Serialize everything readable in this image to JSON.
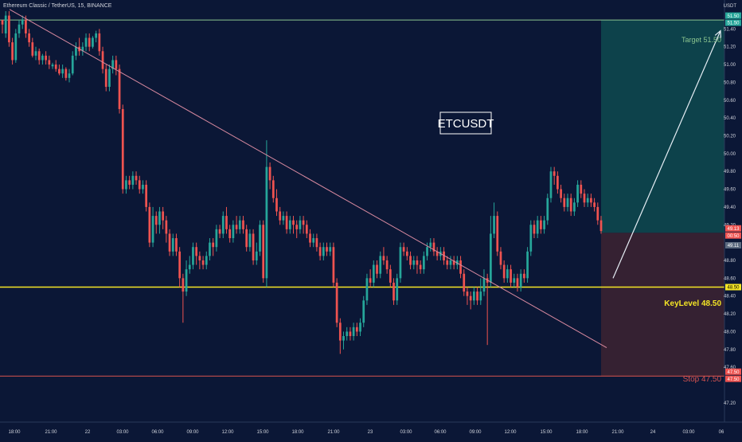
{
  "header": {
    "symbol_line": "Ethereum Classic / TetherUS, 15, BINANCE",
    "currency": "USDT"
  },
  "colors": {
    "background": "#0b1736",
    "up": "#26a69a",
    "down": "#ef5350",
    "target_zone": "#0e4a4f",
    "stop_zone": "#3a2232",
    "key_level": "#f5e625",
    "target_line": "#8bc48f",
    "stop_line": "#d9534f",
    "trendline": "#d98aa0",
    "arrow": "#e6eef5",
    "text": "#d1d4dc"
  },
  "chart_data": {
    "type": "candlestick",
    "title": "ETCUSDT",
    "timeframe": "15",
    "exchange": "BINANCE",
    "y_axis": {
      "min": 47.2,
      "max": 51.5,
      "ticks": [
        "51.40",
        "51.20",
        "51.00",
        "50.80",
        "50.60",
        "50.40",
        "50.20",
        "50.00",
        "49.80",
        "49.60",
        "49.40",
        "49.20",
        "48.80",
        "48.60",
        "48.40",
        "48.20",
        "48.00",
        "47.80",
        "47.60",
        "47.20"
      ]
    },
    "x_axis": {
      "ticks": [
        "18:00",
        "21:00",
        "22",
        "03:00",
        "06:00",
        "09:00",
        "12:00",
        "15:00",
        "18:00",
        "21:00",
        "23",
        "03:00",
        "06:00",
        "09:00",
        "12:00",
        "15:00",
        "18:00",
        "21:00",
        "24",
        "03:00",
        "06"
      ]
    },
    "price_badges": [
      {
        "label": "51.50",
        "value": 51.55,
        "color": "#26a69a"
      },
      {
        "label": "51.50",
        "value": 51.47,
        "color": "#26a69a"
      },
      {
        "label": "49.13",
        "value": 49.16,
        "color": "#ef5350"
      },
      {
        "label": "00:50",
        "value": 49.08,
        "color": "#ef5350"
      },
      {
        "label": "49.11",
        "value": 48.97,
        "color": "#5d6b80"
      },
      {
        "label": "48.50",
        "value": 48.5,
        "color": "#f5e625"
      },
      {
        "label": "47.50",
        "value": 47.55,
        "color": "#ef5350"
      },
      {
        "label": "47.50",
        "value": 47.47,
        "color": "#ef5350"
      }
    ],
    "levels": [
      {
        "name": "target",
        "value": 51.5,
        "label": "Target 51.50"
      },
      {
        "name": "key",
        "value": 48.5,
        "label": "KeyLevel 48.50"
      },
      {
        "name": "stop",
        "value": 47.5,
        "label": "Stop 47.50"
      },
      {
        "name": "entry",
        "value": 49.11
      }
    ],
    "trendline": {
      "from": {
        "time": "17:00",
        "price": 51.6
      },
      "to": {
        "time": "19:45",
        "price": 47.8
      }
    },
    "projection_arrow": {
      "from": {
        "time": "20:00",
        "price": 48.6
      },
      "to": {
        "time": "06:00",
        "price": 51.4
      }
    },
    "candles_ohlc": [
      [
        51.5,
        51.45,
        51.5,
        51.35
      ],
      [
        51.35,
        51.55,
        51.6,
        51.3
      ],
      [
        51.55,
        51.25,
        51.6,
        51.2
      ],
      [
        51.25,
        51.05,
        51.3,
        51
      ],
      [
        51.05,
        51.35,
        51.4,
        51.02
      ],
      [
        51.35,
        51.45,
        51.5,
        51.3
      ],
      [
        51.45,
        51.5,
        51.55,
        51.4
      ],
      [
        51.5,
        51.35,
        51.55,
        51.3
      ],
      [
        51.35,
        51.25,
        51.4,
        51.2
      ],
      [
        51.25,
        51.1,
        51.3,
        51.08
      ],
      [
        51.1,
        51.15,
        51.2,
        51.05
      ],
      [
        51.15,
        51.05,
        51.18,
        51
      ],
      [
        51.05,
        51.1,
        51.12,
        51
      ],
      [
        51.1,
        51.05,
        51.15,
        51
      ],
      [
        51.05,
        51,
        51.1,
        50.95
      ],
      [
        50.98,
        51,
        51.02,
        50.95
      ],
      [
        51,
        50.95,
        51.05,
        50.92
      ],
      [
        50.95,
        50.9,
        51,
        50.88
      ],
      [
        50.9,
        50.95,
        51,
        50.85
      ],
      [
        50.95,
        50.85,
        50.97,
        50.82
      ],
      [
        50.85,
        50.9,
        50.95,
        50.8
      ],
      [
        50.9,
        51.1,
        51.15,
        50.88
      ],
      [
        51.1,
        51.2,
        51.25,
        51.05
      ],
      [
        51.2,
        51.15,
        51.3,
        51.1
      ],
      [
        51.15,
        51.2,
        51.25,
        51.1
      ],
      [
        51.2,
        51.3,
        51.35,
        51.15
      ],
      [
        51.3,
        51.2,
        51.35,
        51.15
      ],
      [
        51.2,
        51.3,
        51.32,
        51.18
      ],
      [
        51.3,
        51.35,
        51.38,
        51.25
      ],
      [
        51.35,
        51.15,
        51.4,
        51.1
      ],
      [
        51.15,
        50.95,
        51.2,
        50.9
      ],
      [
        50.95,
        50.75,
        51,
        50.7
      ],
      [
        50.75,
        50.95,
        51,
        50.7
      ],
      [
        50.95,
        51.05,
        51.1,
        50.9
      ],
      [
        51.05,
        50.95,
        51.1,
        50.88
      ],
      [
        50.95,
        50.5,
        51,
        50.45
      ],
      [
        50.5,
        49.6,
        50.55,
        49.55
      ],
      [
        49.6,
        49.7,
        49.75,
        49.55
      ],
      [
        49.7,
        49.65,
        49.75,
        49.6
      ],
      [
        49.65,
        49.75,
        49.8,
        49.6
      ],
      [
        49.75,
        49.7,
        49.8,
        49.65
      ],
      [
        49.7,
        49.6,
        49.75,
        49.55
      ],
      [
        49.6,
        49.65,
        49.7,
        49.55
      ],
      [
        49.65,
        49.4,
        49.7,
        49.35
      ],
      [
        49.4,
        49,
        49.45,
        48.95
      ],
      [
        49,
        49.3,
        49.4,
        48.95
      ],
      [
        49.3,
        49.2,
        49.35,
        49.1
      ],
      [
        49.2,
        49.35,
        49.4,
        49.1
      ],
      [
        49.35,
        49.25,
        49.4,
        49.15
      ],
      [
        49.25,
        49.1,
        49.3,
        49
      ],
      [
        49.1,
        48.9,
        49.15,
        48.85
      ],
      [
        48.9,
        49.05,
        49.1,
        48.85
      ],
      [
        49.05,
        48.9,
        49.1,
        48.85
      ],
      [
        48.9,
        48.6,
        48.95,
        48.5
      ],
      [
        48.6,
        48.45,
        48.65,
        48.1
      ],
      [
        48.45,
        48.7,
        48.8,
        48.4
      ],
      [
        48.7,
        48.75,
        48.85,
        48.65
      ],
      [
        48.75,
        48.95,
        49,
        48.7
      ],
      [
        48.95,
        48.85,
        49,
        48.75
      ],
      [
        48.85,
        48.8,
        48.9,
        48.7
      ],
      [
        48.8,
        48.75,
        48.85,
        48.7
      ],
      [
        48.75,
        48.85,
        48.9,
        48.7
      ],
      [
        48.85,
        49,
        49.05,
        48.8
      ],
      [
        49,
        48.95,
        49.05,
        48.85
      ],
      [
        48.95,
        49.15,
        49.2,
        48.9
      ],
      [
        49.15,
        49.1,
        49.2,
        49.05
      ],
      [
        49.1,
        49.3,
        49.35,
        49.05
      ],
      [
        49.3,
        49.15,
        49.4,
        49.1
      ],
      [
        49.15,
        49.05,
        49.2,
        49
      ],
      [
        49.05,
        49.2,
        49.25,
        49
      ],
      [
        49.2,
        49.15,
        49.3,
        49.1
      ],
      [
        49.15,
        49.25,
        49.3,
        49.1
      ],
      [
        49.25,
        49.15,
        49.3,
        49.1
      ],
      [
        49.15,
        48.95,
        49.2,
        48.9
      ],
      [
        48.95,
        49.1,
        49.15,
        48.9
      ],
      [
        49.1,
        48.8,
        49.15,
        48.75
      ],
      [
        48.8,
        48.9,
        49,
        48.75
      ],
      [
        48.9,
        49.2,
        49.25,
        48.85
      ],
      [
        49.2,
        48.6,
        49.25,
        48.55
      ],
      [
        48.6,
        49.85,
        50.15,
        48.5
      ],
      [
        49.85,
        49.7,
        49.9,
        49.6
      ],
      [
        49.7,
        49.5,
        49.75,
        49.45
      ],
      [
        49.5,
        49.35,
        49.6,
        49.3
      ],
      [
        49.35,
        49.25,
        49.4,
        49.2
      ],
      [
        49.25,
        49.3,
        49.35,
        49.2
      ],
      [
        49.3,
        49.15,
        49.35,
        49.1
      ],
      [
        49.15,
        49.25,
        49.3,
        49.1
      ],
      [
        49.25,
        49.2,
        49.3,
        49.1
      ],
      [
        49.2,
        49.15,
        49.25,
        49.05
      ],
      [
        49.15,
        49.25,
        49.3,
        49.1
      ],
      [
        49.25,
        49.2,
        49.3,
        49.1
      ],
      [
        49.2,
        49.1,
        49.25,
        49.05
      ],
      [
        49.1,
        49,
        49.15,
        48.95
      ],
      [
        49,
        49.05,
        49.1,
        48.95
      ],
      [
        49.05,
        48.95,
        49.1,
        48.9
      ],
      [
        48.95,
        48.85,
        49,
        48.8
      ],
      [
        48.85,
        48.95,
        49,
        48.8
      ],
      [
        48.95,
        48.9,
        49,
        48.85
      ],
      [
        48.9,
        48.95,
        49,
        48.85
      ],
      [
        48.95,
        48.55,
        49,
        48.5
      ],
      [
        48.55,
        48.1,
        48.6,
        48.05
      ],
      [
        48.1,
        47.9,
        48.15,
        47.75
      ],
      [
        47.9,
        47.95,
        48,
        47.8
      ],
      [
        47.95,
        48,
        48.05,
        47.9
      ],
      [
        48,
        47.95,
        48.05,
        47.9
      ],
      [
        47.95,
        48.05,
        48.1,
        47.9
      ],
      [
        48.05,
        48,
        48.1,
        47.95
      ],
      [
        48,
        48.1,
        48.15,
        47.95
      ],
      [
        48.1,
        48.35,
        48.4,
        48.05
      ],
      [
        48.35,
        48.6,
        48.65,
        48.3
      ],
      [
        48.6,
        48.55,
        48.7,
        48.5
      ],
      [
        48.55,
        48.75,
        48.8,
        48.5
      ],
      [
        48.75,
        48.65,
        48.8,
        48.6
      ],
      [
        48.65,
        48.85,
        48.9,
        48.6
      ],
      [
        48.85,
        48.8,
        48.95,
        48.75
      ],
      [
        48.8,
        48.7,
        48.85,
        48.65
      ],
      [
        48.7,
        48.55,
        48.75,
        48.5
      ],
      [
        48.55,
        48.35,
        48.6,
        48.3
      ],
      [
        48.35,
        48.6,
        48.65,
        48.3
      ],
      [
        48.6,
        48.95,
        49,
        48.55
      ],
      [
        48.95,
        48.9,
        49,
        48.85
      ],
      [
        48.9,
        48.85,
        48.95,
        48.8
      ],
      [
        48.85,
        48.75,
        48.9,
        48.7
      ],
      [
        48.75,
        48.8,
        48.85,
        48.7
      ],
      [
        48.8,
        48.75,
        48.85,
        48.65
      ],
      [
        48.75,
        48.7,
        48.8,
        48.65
      ],
      [
        48.7,
        48.85,
        48.9,
        48.65
      ],
      [
        48.85,
        48.95,
        49,
        48.8
      ],
      [
        48.95,
        49,
        49.05,
        48.9
      ],
      [
        49,
        48.9,
        49.05,
        48.85
      ],
      [
        48.9,
        48.85,
        48.95,
        48.8
      ],
      [
        48.85,
        48.9,
        48.95,
        48.8
      ],
      [
        48.9,
        48.8,
        48.95,
        48.75
      ],
      [
        48.8,
        48.75,
        48.85,
        48.7
      ],
      [
        48.75,
        48.8,
        48.85,
        48.7
      ],
      [
        48.8,
        48.75,
        48.85,
        48.7
      ],
      [
        48.75,
        48.8,
        48.85,
        48.7
      ],
      [
        48.8,
        48.65,
        48.85,
        48.6
      ],
      [
        48.65,
        48.45,
        48.7,
        48.4
      ],
      [
        48.45,
        48.4,
        48.5,
        48.3
      ],
      [
        48.4,
        48.35,
        48.45,
        48.25
      ],
      [
        48.35,
        48.45,
        48.5,
        48.3
      ],
      [
        48.45,
        48.35,
        48.5,
        48.3
      ],
      [
        48.35,
        48.45,
        48.6,
        48.3
      ],
      [
        48.45,
        48.6,
        48.7,
        48.4
      ],
      [
        48.6,
        48.55,
        48.65,
        47.85
      ],
      [
        48.55,
        49.1,
        49.3,
        48.5
      ],
      [
        49.1,
        49.3,
        49.45,
        49.05
      ],
      [
        49.3,
        48.9,
        49.35,
        48.85
      ],
      [
        48.9,
        48.75,
        48.95,
        48.7
      ],
      [
        48.75,
        48.6,
        48.8,
        48.55
      ],
      [
        48.6,
        48.7,
        48.75,
        48.55
      ],
      [
        48.7,
        48.55,
        48.75,
        48.5
      ],
      [
        48.55,
        48.6,
        48.65,
        48.5
      ],
      [
        48.6,
        48.5,
        48.65,
        48.45
      ],
      [
        48.5,
        48.65,
        48.7,
        48.45
      ],
      [
        48.65,
        48.6,
        48.7,
        48.55
      ],
      [
        48.6,
        48.9,
        48.95,
        48.55
      ],
      [
        48.9,
        49.2,
        49.25,
        48.85
      ],
      [
        49.2,
        49.1,
        49.25,
        49.05
      ],
      [
        49.1,
        49.25,
        49.3,
        49.05
      ],
      [
        49.25,
        49.15,
        49.3,
        49.1
      ],
      [
        49.15,
        49.25,
        49.3,
        49.1
      ],
      [
        49.25,
        49.5,
        49.55,
        49.2
      ],
      [
        49.5,
        49.8,
        49.85,
        49.45
      ],
      [
        49.8,
        49.75,
        49.85,
        49.65
      ],
      [
        49.75,
        49.6,
        49.8,
        49.55
      ],
      [
        49.6,
        49.5,
        49.65,
        49.45
      ],
      [
        49.5,
        49.4,
        49.55,
        49.35
      ],
      [
        49.4,
        49.5,
        49.55,
        49.35
      ],
      [
        49.5,
        49.35,
        49.55,
        49.3
      ],
      [
        49.35,
        49.45,
        49.5,
        49.3
      ],
      [
        49.45,
        49.65,
        49.7,
        49.4
      ],
      [
        49.65,
        49.55,
        49.7,
        49.5
      ],
      [
        49.55,
        49.45,
        49.6,
        49.4
      ],
      [
        49.45,
        49.5,
        49.55,
        49.4
      ],
      [
        49.5,
        49.45,
        49.55,
        49.4
      ],
      [
        49.45,
        49.4,
        49.5,
        49.35
      ],
      [
        49.4,
        49.25,
        49.45,
        49.2
      ],
      [
        49.25,
        49.13,
        49.3,
        49.1
      ]
    ]
  }
}
